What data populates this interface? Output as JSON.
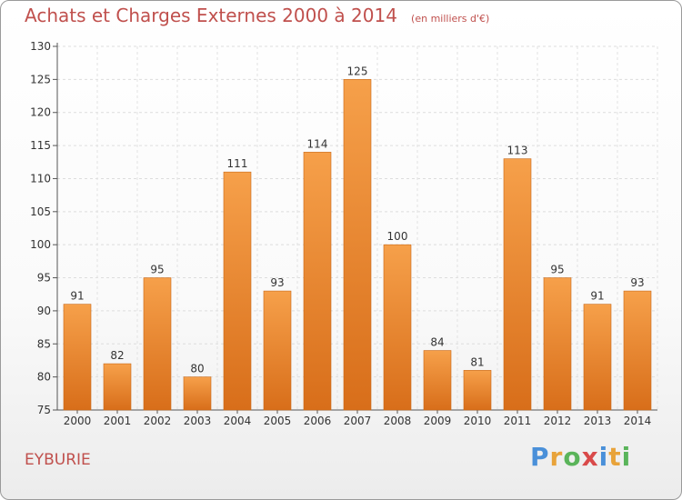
{
  "header": {
    "title": "Achats et Charges Externes 2000 à 2014",
    "unit": "(en milliers d'€)"
  },
  "footer": {
    "commune": "EYBURIE",
    "brand": "Proxiti",
    "brand_colors": [
      "#4a90d9",
      "#e8a33a",
      "#5ab45a",
      "#d94a4a",
      "#4a90d9",
      "#e8a33a",
      "#5ab45a"
    ]
  },
  "chart_data": {
    "type": "bar",
    "categories": [
      "2000",
      "2001",
      "2002",
      "2003",
      "2004",
      "2005",
      "2006",
      "2007",
      "2008",
      "2009",
      "2010",
      "2011",
      "2012",
      "2013",
      "2014"
    ],
    "values": [
      91,
      82,
      95,
      80,
      111,
      93,
      114,
      125,
      100,
      84,
      81,
      113,
      95,
      91,
      93
    ],
    "title": "Achats et Charges Externes 2000 à 2014",
    "subtitle": "(en milliers d'€)",
    "ylim": [
      75,
      130
    ],
    "yticks": [
      75,
      80,
      85,
      90,
      95,
      100,
      105,
      110,
      115,
      120,
      125,
      130
    ],
    "grid": true,
    "bar_color": "#f0922e",
    "bar_color_dark": "#d86e1a"
  }
}
